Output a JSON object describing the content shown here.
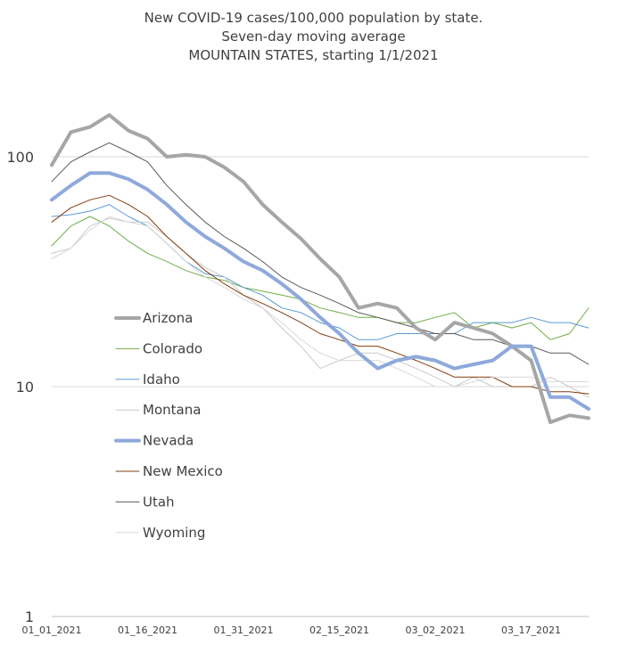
{
  "chart_data": {
    "type": "line",
    "title_lines": [
      "New COVID-19 cases/100,000 population by state.",
      "Seven-day moving average",
      "MOUNTAIN STATES, starting 1/1/2021"
    ],
    "y_scale": "log",
    "ylim": [
      1,
      200
    ],
    "y_ticks": [
      1,
      10,
      100
    ],
    "y_tick_labels": [
      "1",
      "10",
      "100"
    ],
    "x_labels": [
      "01_01_2021",
      "01_16_2021",
      "01_31_2021",
      "02_15_2021",
      "03_02_2021",
      "03_17_2021"
    ],
    "x": [
      "01_01_2021",
      "01_04_2021",
      "01_07_2021",
      "01_10_2021",
      "01_13_2021",
      "01_16_2021",
      "01_19_2021",
      "01_22_2021",
      "01_25_2021",
      "01_28_2021",
      "01_31_2021",
      "02_03_2021",
      "02_06_2021",
      "02_09_2021",
      "02_12_2021",
      "02_15_2021",
      "02_18_2021",
      "02_21_2021",
      "02_24_2021",
      "02_27_2021",
      "03_02_2021",
      "03_05_2021",
      "03_08_2021",
      "03_11_2021",
      "03_14_2021",
      "03_17_2021",
      "03_20_2021",
      "03_23_2021",
      "03_26_2021"
    ],
    "gridlines": "horizontal",
    "legend_position": "center-left",
    "series": [
      {
        "name": "Arizona",
        "color": "#a6a6a6",
        "width": 4,
        "values": [
          92,
          128,
          135,
          152,
          130,
          120,
          100,
          102,
          100,
          90,
          78,
          62,
          52,
          44,
          36,
          30,
          22,
          23,
          22,
          18,
          16,
          19,
          18,
          17,
          15,
          13,
          7,
          7.5,
          7.3
        ]
      },
      {
        "name": "Colorado",
        "color": "#70ad47",
        "width": 1,
        "values": [
          41,
          50,
          55,
          50,
          43,
          38,
          35,
          32,
          30,
          29,
          27,
          26,
          25,
          24,
          22,
          21,
          20,
          20,
          19,
          19,
          20,
          21,
          18,
          19,
          18,
          19,
          16,
          17,
          22
        ]
      },
      {
        "name": "Idaho",
        "color": "#5b9bd5",
        "width": 1,
        "values": [
          55,
          56,
          58,
          62,
          55,
          50,
          42,
          35,
          31,
          30,
          27,
          25,
          22,
          21,
          19,
          18,
          16,
          16,
          17,
          17,
          17,
          17,
          19,
          19,
          19,
          20,
          19,
          19,
          18
        ]
      },
      {
        "name": "Montana",
        "color": "#c9c9c9",
        "width": 1,
        "values": [
          38,
          40,
          50,
          54,
          52,
          52,
          45,
          38,
          33,
          30,
          25,
          22,
          18,
          15,
          12,
          13,
          14,
          14,
          13,
          12,
          11,
          10,
          11,
          10,
          10,
          10,
          11,
          10,
          9
        ]
      },
      {
        "name": "Nevada",
        "color": "#8ea9db",
        "width": 4,
        "values": [
          65,
          75,
          85,
          85,
          80,
          72,
          62,
          52,
          45,
          40,
          35,
          32,
          28,
          24,
          20,
          17,
          14,
          12,
          13,
          13.5,
          13,
          12,
          12.5,
          13,
          15,
          15,
          9,
          9,
          8
        ]
      },
      {
        "name": "New Mexico",
        "color": "#843c0c",
        "width": 1,
        "values": [
          52,
          60,
          65,
          68,
          62,
          55,
          45,
          38,
          32,
          28,
          25,
          23,
          21,
          19,
          17,
          16,
          15,
          15,
          14,
          13,
          12,
          11,
          11,
          11,
          10,
          10,
          9.5,
          9.5,
          9.3
        ]
      },
      {
        "name": "Utah",
        "color": "#595959",
        "width": 1,
        "values": [
          78,
          95,
          105,
          115,
          105,
          95,
          75,
          62,
          52,
          45,
          40,
          35,
          30,
          27,
          25,
          23,
          21,
          20,
          19,
          18,
          17,
          17,
          16,
          16,
          15,
          15,
          14,
          14,
          12.5
        ]
      },
      {
        "name": "Wyoming",
        "color": "#d9d9d9",
        "width": 1,
        "values": [
          36,
          40,
          48,
          55,
          52,
          50,
          42,
          35,
          30,
          27,
          24,
          22,
          19,
          16,
          14,
          13,
          13,
          13,
          12,
          11,
          10,
          10,
          10.5,
          11,
          11,
          11,
          10.5,
          10.5,
          10.5
        ]
      }
    ]
  }
}
